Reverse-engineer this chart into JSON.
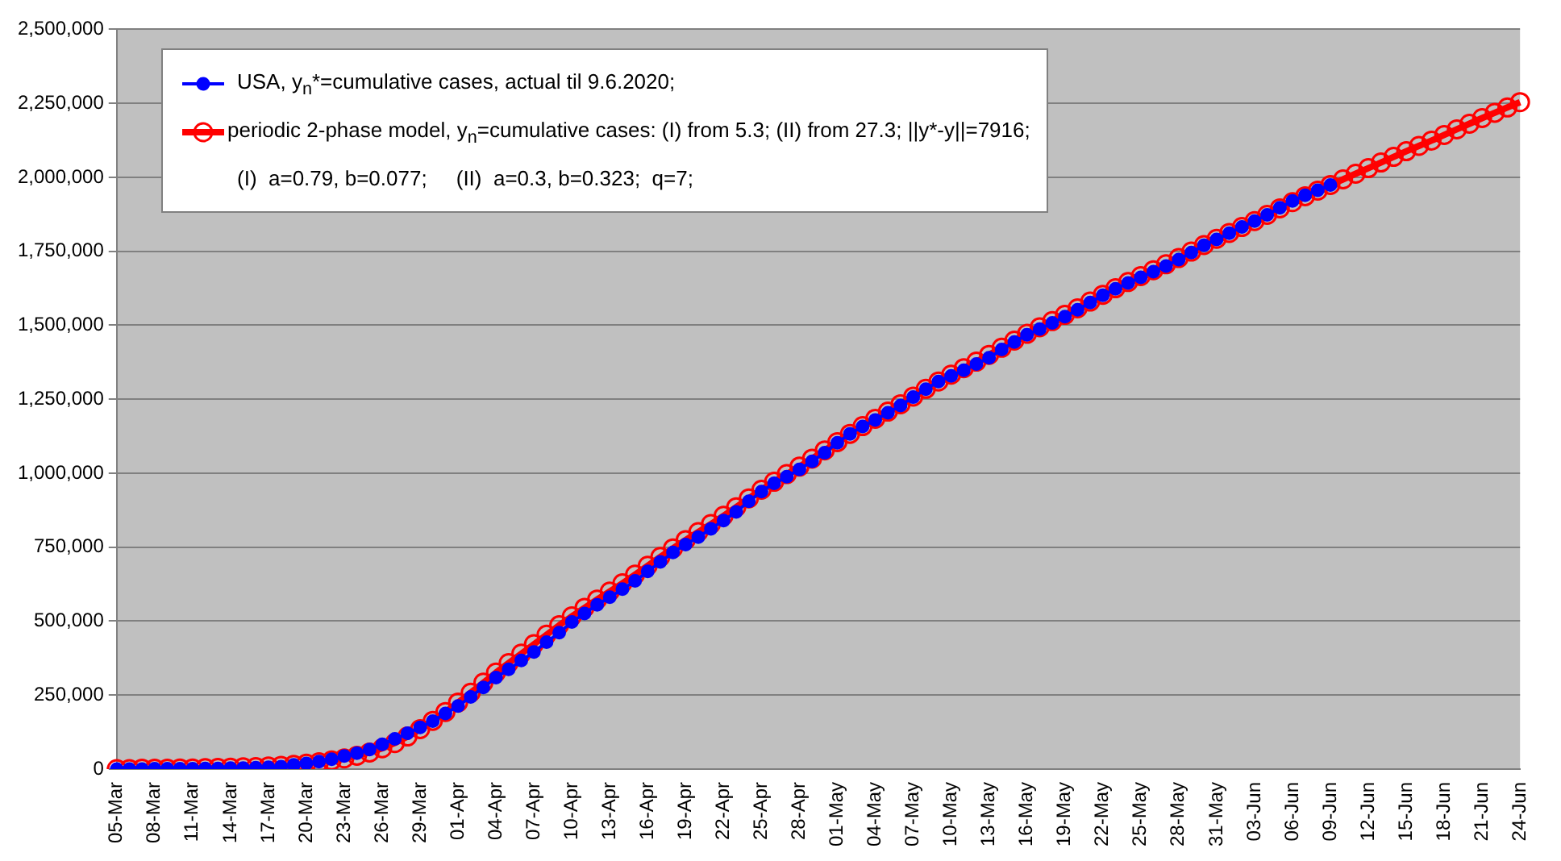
{
  "chart_data": {
    "type": "line",
    "categories": [
      "05-Mar",
      null,
      null,
      "08-Mar",
      null,
      null,
      "11-Mar",
      null,
      null,
      "14-Mar",
      null,
      null,
      "17-Mar",
      null,
      null,
      "20-Mar",
      null,
      null,
      "23-Mar",
      null,
      null,
      "26-Mar",
      null,
      null,
      "29-Mar",
      null,
      null,
      "01-Apr",
      null,
      null,
      "04-Apr",
      null,
      null,
      "07-Apr",
      null,
      null,
      "10-Apr",
      null,
      null,
      "13-Apr",
      null,
      null,
      "16-Apr",
      null,
      null,
      "19-Apr",
      null,
      null,
      "22-Apr",
      null,
      null,
      "25-Apr",
      null,
      null,
      "28-Apr",
      null,
      null,
      "01-May",
      null,
      null,
      "04-May",
      null,
      null,
      "07-May",
      null,
      null,
      "10-May",
      null,
      null,
      "13-May",
      null,
      null,
      "16-May",
      null,
      null,
      "19-May",
      null,
      null,
      "22-May",
      null,
      null,
      "25-May",
      null,
      null,
      "28-May",
      null,
      null,
      "31-May",
      null,
      null,
      "03-Jun",
      null,
      null,
      "06-Jun",
      null,
      null,
      "09-Jun",
      null,
      null,
      "12-Jun",
      null,
      null,
      "15-Jun",
      null,
      null,
      "18-Jun",
      null,
      null,
      "21-Jun",
      null,
      null,
      "24-Jun"
    ],
    "series": [
      {
        "name": "USA, y$_{n}$*=cumulative cases, actual til 9.6.2020;",
        "color": "#0000ff",
        "marker": "circle",
        "values": [
          0,
          0,
          0,
          1000,
          1000,
          1000,
          1000,
          2000,
          2000,
          3000,
          3000,
          5000,
          6000,
          8000,
          14000,
          19000,
          25000,
          33000,
          44000,
          54000,
          66000,
          84000,
          102000,
          121000,
          141000,
          162000,
          188000,
          213000,
          244000,
          276000,
          309000,
          337000,
          367000,
          396000,
          429000,
          461000,
          497000,
          526000,
          555000,
          581000,
          608000,
          636000,
          668000,
          700000,
          732000,
          759000,
          784000,
          812000,
          840000,
          869000,
          905000,
          938000,
          966000,
          988000,
          1013000,
          1040000,
          1069000,
          1103000,
          1133000,
          1158000,
          1180000,
          1204000,
          1229000,
          1257000,
          1284000,
          1310000,
          1329000,
          1348000,
          1369000,
          1390000,
          1418000,
          1443000,
          1468000,
          1487000,
          1508000,
          1529000,
          1552000,
          1577000,
          1601000,
          1623000,
          1643000,
          1662000,
          1681000,
          1700000,
          1722000,
          1746000,
          1770000,
          1790000,
          1811000,
          1832000,
          1852000,
          1873000,
          1897000,
          1920000,
          1939000,
          1956000,
          1974000,
          null,
          null,
          null,
          null,
          null,
          null,
          null,
          null,
          null,
          null,
          null,
          null,
          null,
          null,
          null
        ]
      },
      {
        "name": "periodic 2-phase model, y$_{n}$=cumulative cases: (I) from 5.3; (II) from 27.3;  ||y*-y||=7916;",
        "color": "#ff0000",
        "marker": "circle",
        "values": [
          0,
          0,
          1000,
          1000,
          1000,
          2000,
          2000,
          3000,
          4000,
          5000,
          6000,
          7000,
          9000,
          11000,
          14000,
          18000,
          23000,
          29000,
          36000,
          45000,
          56000,
          70000,
          88000,
          110000,
          135000,
          163000,
          193000,
          225000,
          258000,
          292000,
          326000,
          358000,
          390000,
          422000,
          454000,
          486000,
          516000,
          545000,
          573000,
          600000,
          628000,
          657000,
          687000,
          717000,
          746000,
          774000,
          801000,
          828000,
          856000,
          885000,
          915000,
          944000,
          971000,
          997000,
          1022000,
          1049000,
          1077000,
          1105000,
          1133000,
          1159000,
          1184000,
          1208000,
          1233000,
          1259000,
          1285000,
          1310000,
          1333000,
          1355000,
          1377000,
          1400000,
          1424000,
          1448000,
          1471000,
          1493000,
          1514000,
          1535000,
          1557000,
          1580000,
          1603000,
          1625000,
          1646000,
          1666000,
          1686000,
          1706000,
          1727000,
          1749000,
          1771000,
          1792000,
          1812000,
          1832000,
          1852000,
          1873000,
          1895000,
          1916000,
          1936000,
          1955000,
          1974000,
          1993000,
          2012000,
          2031000,
          2050000,
          2069000,
          2088000,
          2106000,
          2124000,
          2143000,
          2162000,
          2181000,
          2200000,
          2218000,
          2236000,
          2254000
        ]
      }
    ],
    "annotations": [
      "(I)  a=0.79, b=0.077;     (II)  a=0.3, b=0.323;  q=7;"
    ],
    "ylim": [
      0,
      2500000
    ],
    "yticks": [
      0,
      {
        "value": 250000,
        "label": "250,000"
      },
      {
        "value": 500000,
        "label": "500,000"
      },
      {
        "value": 750000,
        "label": "750,000"
      },
      {
        "value": 1000000,
        "label": "1,000,000"
      },
      {
        "value": 1250000,
        "label": "1,250,000"
      },
      {
        "value": 1500000,
        "label": "1,500,000"
      },
      {
        "value": 1750000,
        "label": "1,750,000"
      },
      {
        "value": 2000000,
        "label": "2,000,000"
      },
      {
        "value": 2250000,
        "label": "2,250,000"
      },
      {
        "value": 2500000,
        "label": "2,500,000"
      }
    ],
    "grid": "y",
    "legend": "top left",
    "line_style": "solid"
  }
}
